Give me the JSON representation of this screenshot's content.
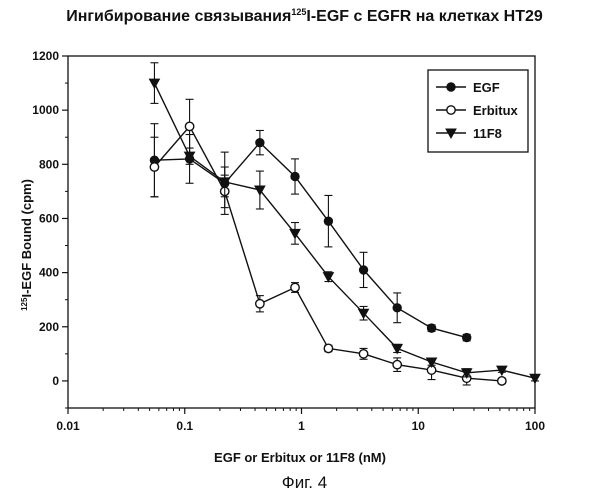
{
  "chart_data": {
    "type": "line",
    "title_main": "Ингибирование связывания",
    "title_sup": "125",
    "title_rest": "I-EGF с EGFR на клетках HT29",
    "xlabel": "EGF or Erbitux or 11F8 (nM)",
    "ylabel_sup": "125",
    "ylabel_rest": "I-EGF Bound (cpm)",
    "x_scale": "log",
    "xlim": [
      0.01,
      100
    ],
    "ylim": [
      -100,
      1200
    ],
    "x_ticks": [
      {
        "value": 0.01,
        "label": "0.01"
      },
      {
        "value": 0.1,
        "label": "0.1"
      },
      {
        "value": 1,
        "label": "1"
      },
      {
        "value": 10,
        "label": "10"
      },
      {
        "value": 100,
        "label": "100"
      }
    ],
    "y_ticks": [
      {
        "value": 0,
        "label": "0"
      },
      {
        "value": 200,
        "label": "200"
      },
      {
        "value": 400,
        "label": "400"
      },
      {
        "value": 600,
        "label": "600"
      },
      {
        "value": 800,
        "label": "800"
      },
      {
        "value": 1000,
        "label": "1000"
      },
      {
        "value": 1200,
        "label": "1200"
      }
    ],
    "grid": false,
    "legend_position": "top-right",
    "series": [
      {
        "name": "EGF",
        "marker": "filled-circle",
        "x": [
          0.055,
          0.11,
          0.22,
          0.44,
          0.88,
          1.7,
          3.4,
          6.6,
          13,
          26
        ],
        "y": [
          815,
          820,
          730,
          880,
          755,
          590,
          410,
          270,
          195,
          160
        ],
        "err": [
          135,
          90,
          115,
          45,
          65,
          95,
          65,
          55,
          12,
          12
        ]
      },
      {
        "name": "Erbitux",
        "marker": "open-circle",
        "x": [
          0.055,
          0.11,
          0.22,
          0.44,
          0.88,
          1.7,
          3.4,
          6.6,
          13,
          26,
          52
        ],
        "y": [
          790,
          940,
          700,
          285,
          345,
          120,
          100,
          60,
          40,
          10,
          0
        ],
        "err": [
          110,
          100,
          60,
          30,
          18,
          12,
          20,
          25,
          35,
          25,
          10
        ]
      },
      {
        "name": "11F8",
        "marker": "filled-triangle-down",
        "x": [
          0.055,
          0.11,
          0.22,
          0.44,
          0.88,
          1.7,
          3.4,
          6.6,
          13,
          26,
          52,
          100
        ],
        "y": [
          1100,
          830,
          735,
          705,
          545,
          385,
          250,
          120,
          70,
          30,
          40,
          10
        ],
        "err": [
          75,
          30,
          55,
          70,
          40,
          18,
          25,
          15,
          12,
          15,
          8,
          10
        ]
      }
    ]
  },
  "caption": "Фиг. 4"
}
